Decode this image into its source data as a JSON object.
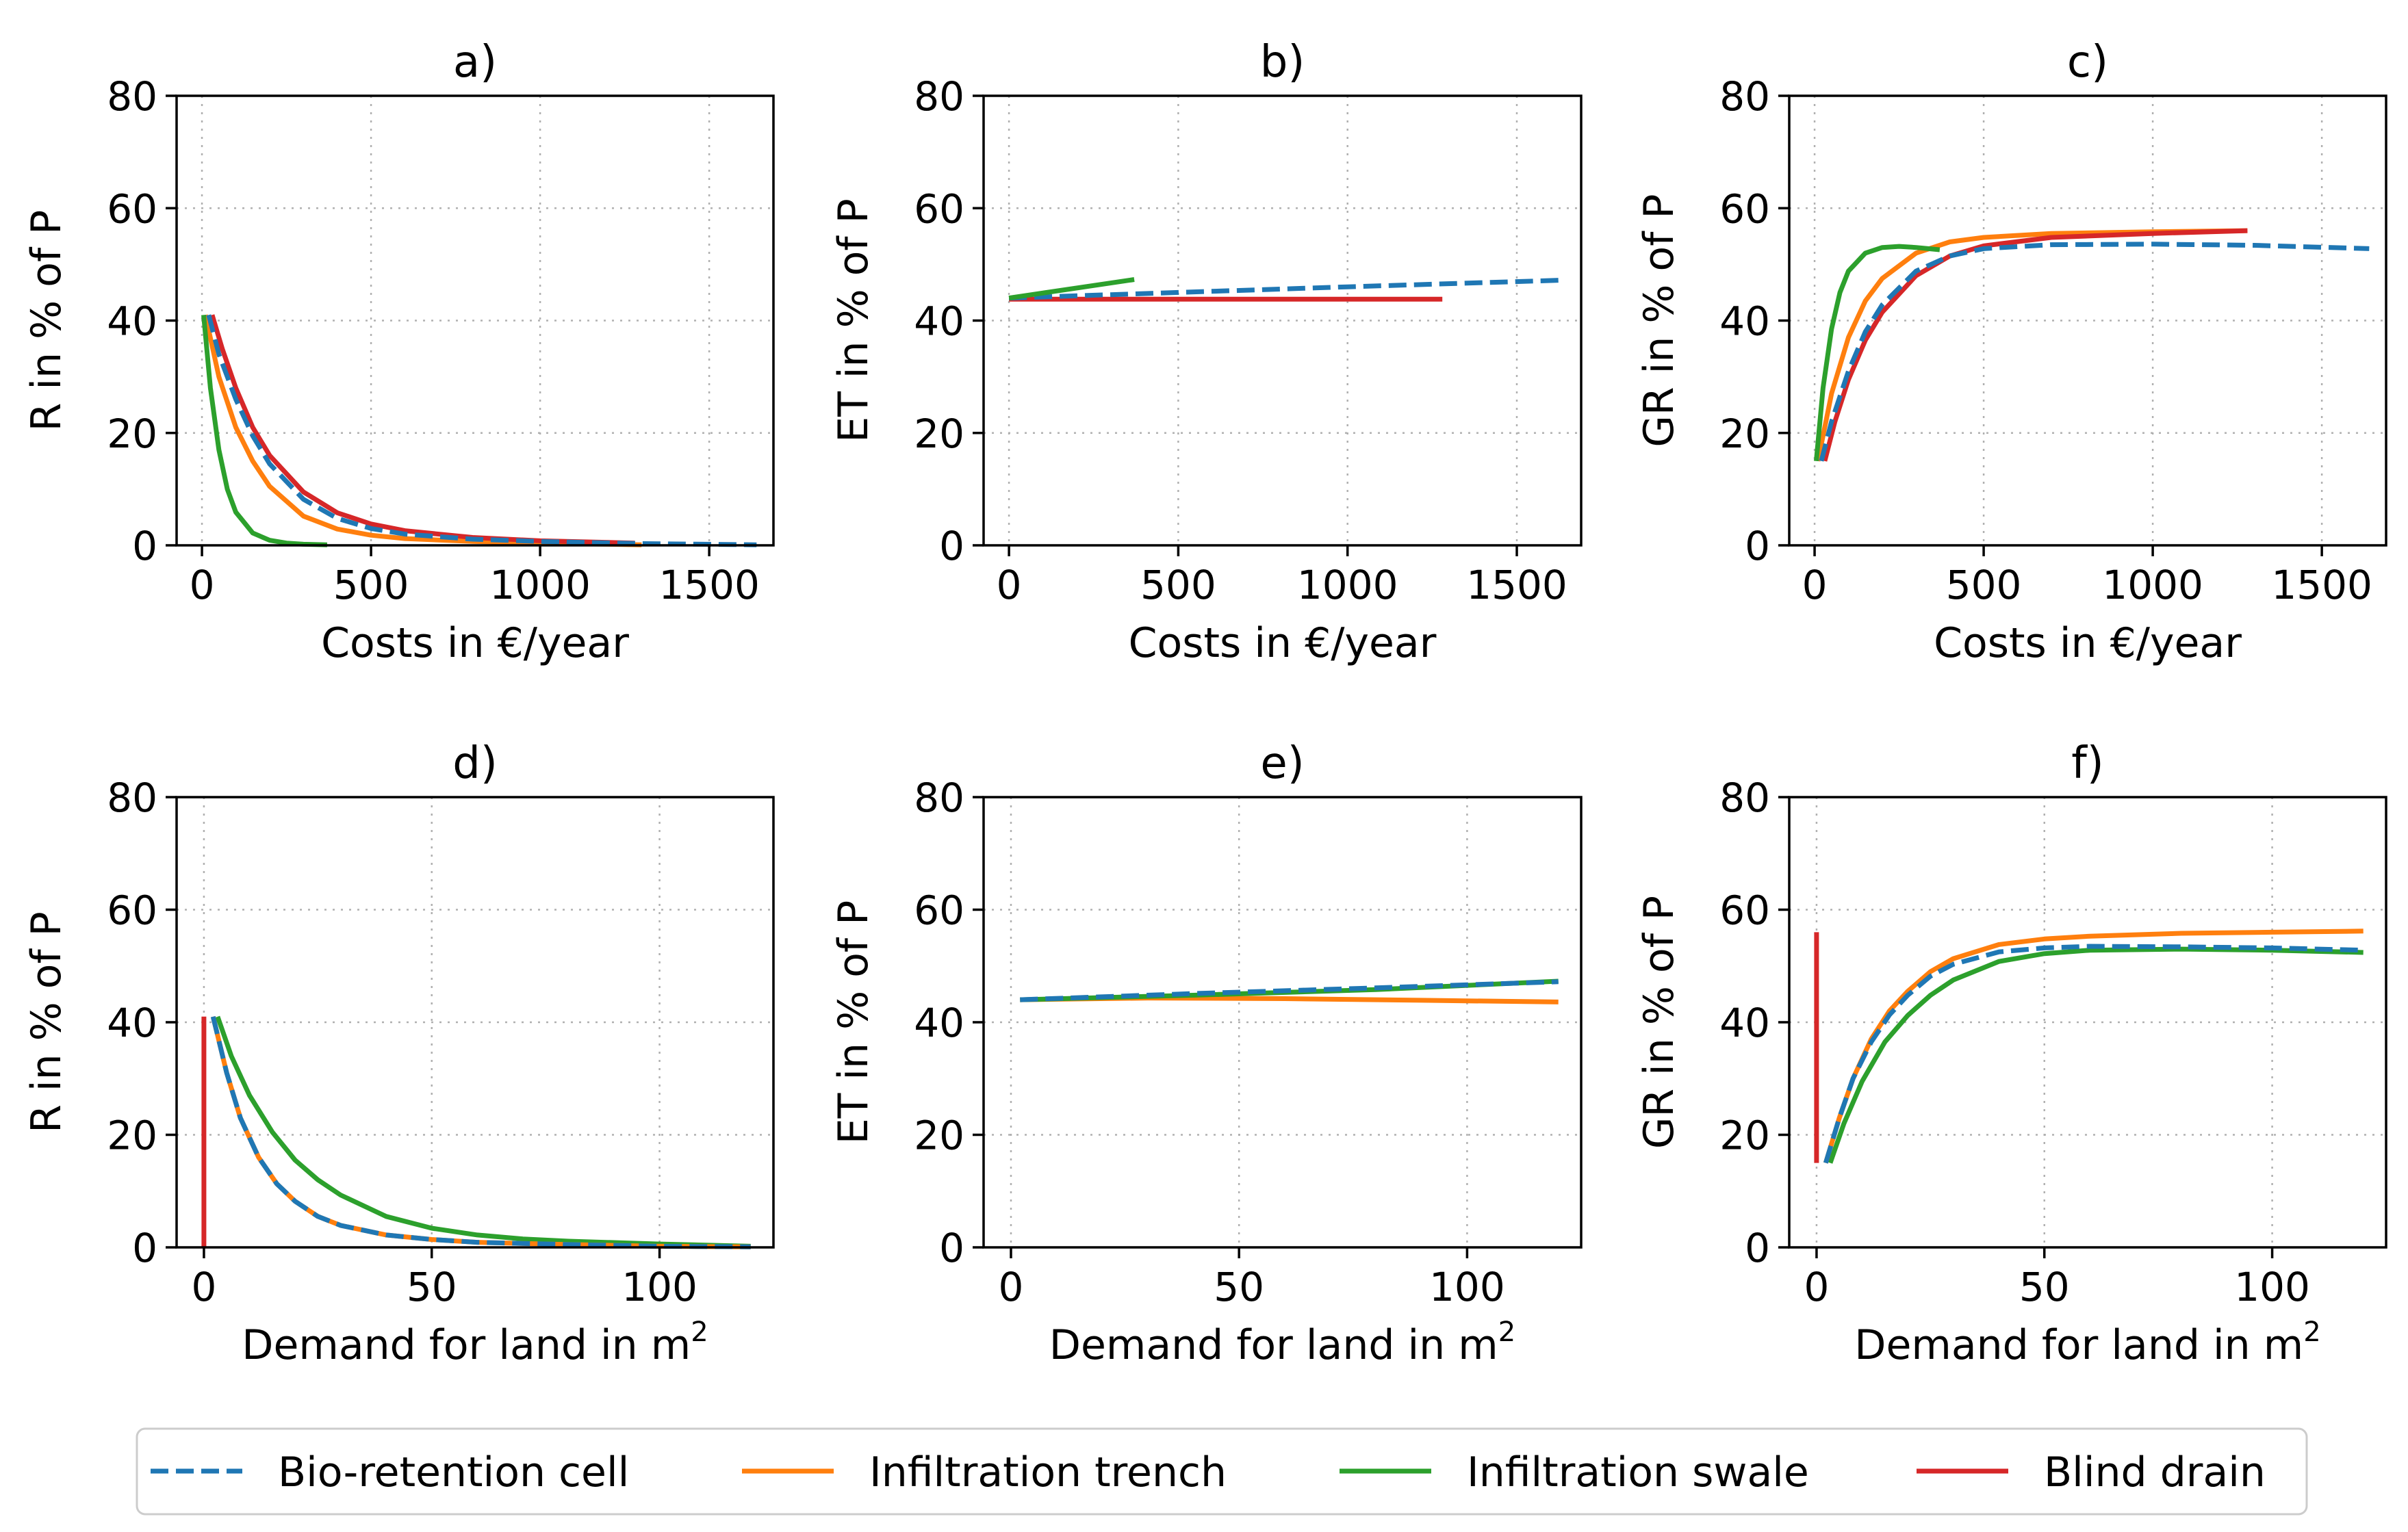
{
  "chart_data": {
    "type": "line",
    "series_styles": [
      {
        "name": "Bio-retention cell",
        "color": "#1f77b4",
        "dash": "dashed"
      },
      {
        "name": "Infiltration trench",
        "color": "#ff7f0e",
        "dash": "solid"
      },
      {
        "name": "Infiltration swale",
        "color": "#2ca02c",
        "dash": "solid"
      },
      {
        "name": "Blind drain",
        "color": "#d62728",
        "dash": "solid"
      }
    ],
    "legend": {
      "placement": "bottom-center",
      "entries": [
        "Bio-retention cell",
        "Infiltration trench",
        "Infiltration swale",
        "Blind drain"
      ]
    },
    "panels": [
      {
        "title": "a)",
        "xlabel": "Costs in €/year",
        "ylabel": "R in % of P",
        "xlim": [
          -75,
          1690
        ],
        "ylim": [
          0,
          80
        ],
        "xticks": [
          0,
          500,
          1000,
          1500
        ],
        "yticks": [
          0,
          20,
          40,
          60,
          80
        ],
        "grid": true,
        "series": [
          {
            "name": "Infiltration trench",
            "x": [
              10,
              50,
              100,
              150,
              200,
              300,
              400,
              500,
              600,
              800,
              1000,
              1300
            ],
            "y": [
              41,
              30,
              21,
              15,
              10.5,
              5.2,
              2.9,
              1.8,
              1.2,
              0.7,
              0.4,
              0.1
            ]
          },
          {
            "name": "Infiltration swale",
            "x": [
              5,
              25,
              50,
              75,
              100,
              150,
              200,
              250,
              300,
              370
            ],
            "y": [
              41,
              28,
              17,
              10,
              5.9,
              2.2,
              0.9,
              0.4,
              0.2,
              0.1
            ]
          },
          {
            "name": "Blind drain",
            "x": [
              30,
              60,
              100,
              150,
              200,
              300,
              400,
              500,
              600,
              800,
              1000,
              1280
            ],
            "y": [
              41,
              35,
              28,
              21,
              16,
              9.5,
              5.8,
              3.8,
              2.6,
              1.4,
              0.8,
              0.4
            ]
          },
          {
            "name": "Bio-retention cell",
            "x": [
              20,
              50,
              100,
              150,
              200,
              300,
              400,
              500,
              600,
              800,
              1000,
              1300,
              1640
            ],
            "y": [
              41,
              34,
              26,
              19.5,
              14.5,
              8.2,
              4.8,
              3.0,
              2.0,
              1.1,
              0.7,
              0.3,
              0.1
            ]
          }
        ]
      },
      {
        "title": "b)",
        "xlabel": "Costs in €/year",
        "ylabel": "ET in % of P",
        "xlim": [
          -75,
          1690
        ],
        "ylim": [
          0,
          80
        ],
        "xticks": [
          0,
          500,
          1000,
          1500
        ],
        "yticks": [
          0,
          20,
          40,
          60,
          80
        ],
        "grid": true,
        "series": [
          {
            "name": "Blind drain",
            "x": [
              0,
              1280
            ],
            "y": [
              43.8,
              43.8
            ]
          },
          {
            "name": "Bio-retention cell",
            "x": [
              0,
              500,
              1000,
              1640
            ],
            "y": [
              44,
              45,
              46,
              47.2
            ]
          },
          {
            "name": "Infiltration swale",
            "x": [
              0,
              370
            ],
            "y": [
              44,
              47.3
            ]
          }
        ]
      },
      {
        "title": "c)",
        "xlabel": "Costs in €/year",
        "ylabel": "GR in % of P",
        "xlim": [
          -75,
          1690
        ],
        "ylim": [
          0,
          80
        ],
        "xticks": [
          0,
          500,
          1000,
          1500
        ],
        "yticks": [
          0,
          20,
          40,
          60,
          80
        ],
        "grid": true,
        "series": [
          {
            "name": "Infiltration trench",
            "x": [
              10,
              50,
              100,
              150,
              200,
              300,
              400,
              500,
              700,
              1000,
              1280
            ],
            "y": [
              15,
              27,
              37,
              43.5,
              47.5,
              52,
              54,
              54.8,
              55.5,
              55.8,
              56
            ]
          },
          {
            "name": "Infiltration swale",
            "x": [
              5,
              25,
              50,
              75,
              100,
              150,
              200,
              250,
              300,
              370
            ],
            "y": [
              15,
              28,
              38.5,
              45,
              48.8,
              52,
              53,
              53.2,
              53,
              52.6
            ]
          },
          {
            "name": "Blind drain",
            "x": [
              30,
              60,
              100,
              150,
              200,
              300,
              400,
              500,
              700,
              1000,
              1280
            ],
            "y": [
              15,
              22,
              29.5,
              36.5,
              41.5,
              48,
              51.5,
              53.3,
              54.8,
              55.5,
              56
            ]
          },
          {
            "name": "Bio-retention cell",
            "x": [
              20,
              50,
              100,
              150,
              200,
              300,
              400,
              500,
              700,
              1000,
              1300,
              1640
            ],
            "y": [
              15,
              22,
              31,
              38,
              42.8,
              48.8,
              51.5,
              52.8,
              53.5,
              53.6,
              53.4,
              52.8
            ]
          }
        ]
      },
      {
        "title": "d)",
        "xlabel": "Demand for land in m",
        "xlabel_sup": "2",
        "ylabel": "R in % of P",
        "xlim": [
          -6,
          125
        ],
        "ylim": [
          0,
          80
        ],
        "xticks": [
          0,
          50,
          100
        ],
        "yticks": [
          0,
          20,
          40,
          60,
          80
        ],
        "grid": true,
        "series": [
          {
            "name": "Blind drain",
            "x": [
              0,
              0
            ],
            "y": [
              0,
              41
            ]
          },
          {
            "name": "Infiltration swale",
            "x": [
              3,
              6,
              10,
              15,
              20,
              25,
              30,
              40,
              50,
              60,
              70,
              80,
              100,
              120
            ],
            "y": [
              41,
              34,
              27,
              20.5,
              15.5,
              12,
              9.3,
              5.5,
              3.4,
              2.2,
              1.5,
              1.1,
              0.6,
              0.2
            ]
          },
          {
            "name": "Infiltration trench",
            "x": [
              2,
              5,
              8,
              12,
              16,
              20,
              25,
              30,
              40,
              50,
              60,
              80,
              100,
              120
            ],
            "y": [
              41,
              31,
              23,
              16,
              11.3,
              8.2,
              5.5,
              3.9,
              2.2,
              1.4,
              0.9,
              0.5,
              0.2,
              0.1
            ]
          },
          {
            "name": "Bio-retention cell",
            "x": [
              2,
              5,
              8,
              12,
              16,
              20,
              25,
              30,
              40,
              50,
              60,
              80,
              100,
              120
            ],
            "y": [
              41,
              31,
              23,
              16,
              11.3,
              8.2,
              5.5,
              3.9,
              2.2,
              1.4,
              0.9,
              0.5,
              0.2,
              0.1
            ]
          }
        ]
      },
      {
        "title": "e)",
        "xlabel": "Demand for land in m",
        "xlabel_sup": "2",
        "ylabel": "ET in % of P",
        "xlim": [
          -6,
          125
        ],
        "ylim": [
          0,
          80
        ],
        "xticks": [
          0,
          50,
          100
        ],
        "yticks": [
          0,
          20,
          40,
          60,
          80
        ],
        "grid": true,
        "series": [
          {
            "name": "Infiltration trench",
            "x": [
              2,
              30,
              60,
              90,
              120
            ],
            "y": [
              44,
              44.3,
              44.2,
              43.9,
              43.6
            ]
          },
          {
            "name": "Infiltration swale",
            "x": [
              2,
              40,
              80,
              120
            ],
            "y": [
              44,
              44.8,
              45.8,
              47.3
            ]
          },
          {
            "name": "Bio-retention cell",
            "x": [
              2,
              40,
              80,
              120
            ],
            "y": [
              44,
              45.1,
              46.1,
              47.2
            ]
          }
        ]
      },
      {
        "title": "f)",
        "xlabel": "Demand for land in m",
        "xlabel_sup": "2",
        "ylabel": "GR in % of P",
        "xlim": [
          -6,
          125
        ],
        "ylim": [
          0,
          80
        ],
        "xticks": [
          0,
          50,
          100
        ],
        "yticks": [
          0,
          20,
          40,
          60,
          80
        ],
        "grid": true,
        "series": [
          {
            "name": "Blind drain",
            "x": [
              0,
              0
            ],
            "y": [
              15,
              56
            ]
          },
          {
            "name": "Infiltration swale",
            "x": [
              3,
              6,
              10,
              15,
              20,
              25,
              30,
              40,
              50,
              60,
              80,
              100,
              120
            ],
            "y": [
              15,
              22,
              29.5,
              36.5,
              41.2,
              44.8,
              47.5,
              50.8,
              52.2,
              52.8,
              53,
              52.8,
              52.4
            ]
          },
          {
            "name": "Infiltration trench",
            "x": [
              2,
              5,
              8,
              12,
              16,
              20,
              25,
              30,
              40,
              50,
              60,
              80,
              100,
              120
            ],
            "y": [
              15,
              23,
              30,
              37,
              42,
              45.5,
              49,
              51.3,
              53.8,
              54.8,
              55.3,
              55.8,
              56,
              56.2
            ]
          },
          {
            "name": "Bio-retention cell",
            "x": [
              2,
              5,
              8,
              12,
              16,
              20,
              25,
              30,
              40,
              50,
              60,
              80,
              100,
              120
            ],
            "y": [
              15,
              23,
              30,
              36.5,
              41.3,
              44.8,
              48.2,
              50.3,
              52.5,
              53.2,
              53.5,
              53.4,
              53.2,
              52.8
            ]
          }
        ]
      }
    ]
  }
}
